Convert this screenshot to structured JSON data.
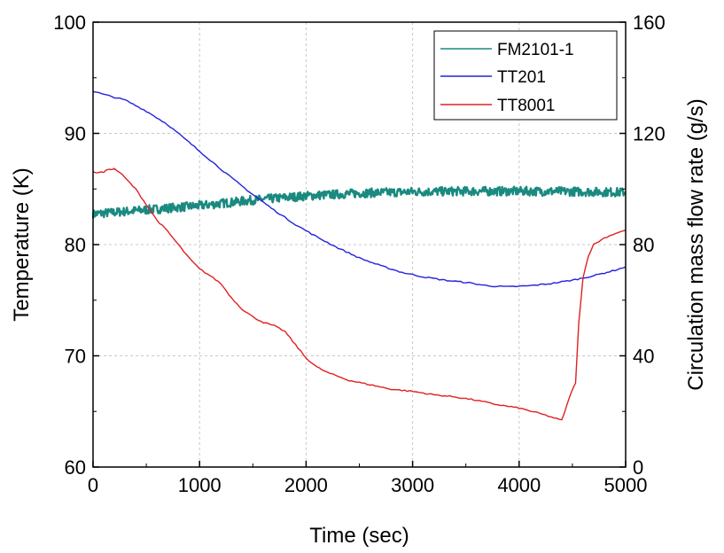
{
  "chart_data": {
    "type": "line",
    "xlabel": "Time (sec)",
    "ylabel_left": "Temperature (K)",
    "ylabel_right": "Circulation mass flow rate (g/s)",
    "xlim": [
      0,
      5000
    ],
    "ylim_left": [
      60,
      100
    ],
    "ylim_right": [
      0,
      160
    ],
    "x_ticks": [
      0,
      1000,
      2000,
      3000,
      4000,
      5000
    ],
    "y_left_ticks": [
      60,
      70,
      80,
      90,
      100
    ],
    "y_right_ticks": [
      0,
      40,
      80,
      120,
      160
    ],
    "grid": true,
    "legend_position": "top-right",
    "series": [
      {
        "name": "FM2101-1",
        "axis": "right",
        "color": "#1a8a80",
        "noisy": true,
        "x": [
          0,
          500,
          1000,
          1500,
          2000,
          2500,
          3000,
          3500,
          4000,
          4500,
          5000
        ],
        "y": [
          91,
          92.5,
          94,
          96,
          97.5,
          98.5,
          99,
          99.2,
          99.2,
          99.1,
          98.8
        ]
      },
      {
        "name": "TT201",
        "axis": "left",
        "color": "#2222dd",
        "x": [
          0,
          100,
          300,
          500,
          700,
          900,
          1100,
          1300,
          1500,
          1700,
          1900,
          2100,
          2300,
          2500,
          2700,
          2900,
          3100,
          3300,
          3500,
          3700,
          3900,
          4100,
          4300,
          4500,
          4700,
          4900,
          5000
        ],
        "y": [
          93.8,
          93.5,
          93.0,
          92.0,
          90.8,
          89.2,
          87.6,
          86.0,
          84.5,
          83.1,
          81.8,
          80.7,
          79.7,
          78.8,
          78.1,
          77.5,
          77.1,
          76.8,
          76.6,
          76.3,
          76.2,
          76.3,
          76.5,
          76.8,
          77.2,
          77.7,
          78.0
        ]
      },
      {
        "name": "TT8001",
        "axis": "left",
        "color": "#e02020",
        "x": [
          0,
          100,
          150,
          200,
          250,
          300,
          400,
          500,
          600,
          700,
          800,
          900,
          1000,
          1100,
          1200,
          1300,
          1400,
          1500,
          1600,
          1700,
          1800,
          1900,
          2000,
          2100,
          2200,
          2400,
          2600,
          2800,
          3000,
          3200,
          3400,
          3600,
          3800,
          4000,
          4200,
          4400,
          4500,
          4530,
          4560,
          4600,
          4650,
          4700,
          4800,
          4900,
          5000
        ],
        "y": [
          86.5,
          86.5,
          86.8,
          86.8,
          86.5,
          86.0,
          85.0,
          83.6,
          82.2,
          81.2,
          80.0,
          78.8,
          77.8,
          77.2,
          76.5,
          75.2,
          74.2,
          73.5,
          73.0,
          72.7,
          72.2,
          71.0,
          69.8,
          69.0,
          68.5,
          67.8,
          67.4,
          67.0,
          66.8,
          66.5,
          66.3,
          66.0,
          65.6,
          65.3,
          64.8,
          64.2,
          67.0,
          67.5,
          73.0,
          77.0,
          79.0,
          80.0,
          80.6,
          81.0,
          81.3
        ]
      }
    ]
  }
}
